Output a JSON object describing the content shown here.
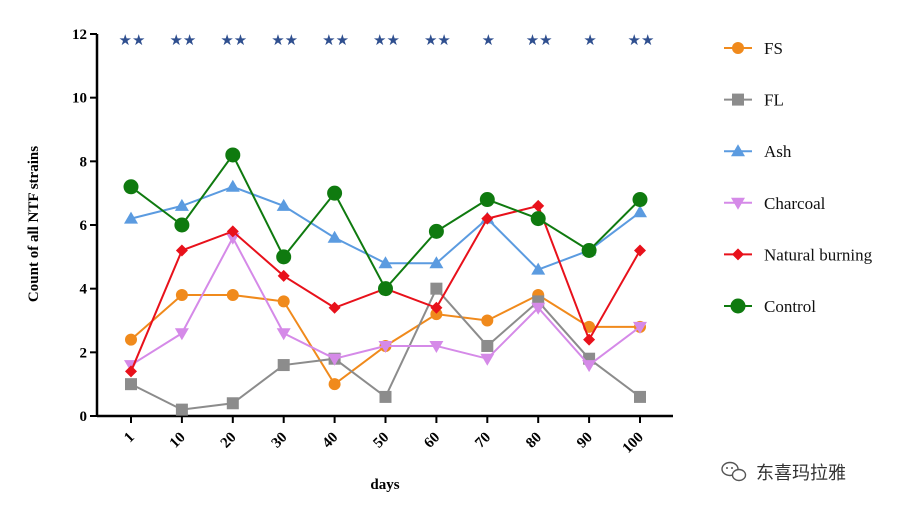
{
  "chart_data": {
    "type": "line",
    "xlabel": "days",
    "ylabel": "Count of all NTF strains",
    "categories": [
      "1",
      "10",
      "20",
      "30",
      "40",
      "50",
      "60",
      "70",
      "80",
      "90",
      "100"
    ],
    "ylim": [
      0,
      12
    ],
    "yticks": [
      "0",
      "2",
      "4",
      "6",
      "8",
      "10",
      "12"
    ],
    "significance": [
      "★★",
      "★★",
      "★★",
      "★★",
      "★★",
      "★★",
      "★★",
      "★",
      "★★",
      "★",
      "★★"
    ],
    "legend_position": "right",
    "grid": false,
    "series": [
      {
        "name": "FS",
        "color": "#f08a1c",
        "marker": "circle",
        "values": [
          2.4,
          3.8,
          3.8,
          3.6,
          1.0,
          2.2,
          3.2,
          3.0,
          3.8,
          2.8,
          2.8
        ]
      },
      {
        "name": "FL",
        "color": "#8c8c8c",
        "marker": "square",
        "values": [
          1.0,
          0.2,
          0.4,
          1.6,
          1.8,
          0.6,
          4.0,
          2.2,
          3.6,
          1.8,
          0.6
        ]
      },
      {
        "name": "Ash",
        "color": "#5b9be0",
        "marker": "triangle-up",
        "values": [
          6.2,
          6.6,
          7.2,
          6.6,
          5.6,
          4.8,
          4.8,
          6.2,
          4.6,
          5.2,
          6.4
        ]
      },
      {
        "name": "Charcoal",
        "color": "#d58ae8",
        "marker": "triangle-down",
        "values": [
          1.6,
          2.6,
          5.6,
          2.6,
          1.8,
          2.2,
          2.2,
          1.8,
          3.4,
          1.6,
          2.8
        ]
      },
      {
        "name": "Natural burning",
        "color": "#e8111b",
        "marker": "diamond",
        "values": [
          1.4,
          5.2,
          5.8,
          4.4,
          3.4,
          4.0,
          3.4,
          6.2,
          6.6,
          2.4,
          5.2
        ]
      },
      {
        "name": "Control",
        "color": "#0f7a0f",
        "marker": "circle-large",
        "values": [
          7.2,
          6.0,
          8.2,
          5.0,
          7.0,
          4.0,
          5.8,
          6.8,
          6.2,
          5.2,
          6.8
        ]
      }
    ]
  },
  "watermark": {
    "text": "东喜玛拉雅",
    "icon": "wechat-icon"
  }
}
